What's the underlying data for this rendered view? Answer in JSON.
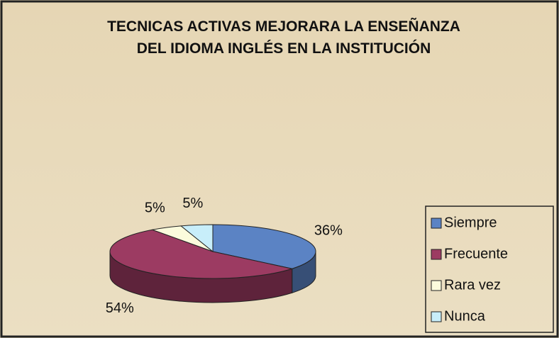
{
  "chart_data": {
    "type": "pie3d",
    "title": "TECNICAS ACTIVAS MEJORARA LA ENSEÑANZA DEL IDIOMA INGLÉS EN LA INSTITUCIÓN",
    "categories": [
      "Siempre",
      "Frecuente",
      "Rara vez",
      "Nunca"
    ],
    "values": [
      36,
      54,
      5,
      5
    ],
    "value_labels": [
      "36%",
      "54%",
      "5%",
      "5%"
    ],
    "colors": [
      "#5b83c4",
      "#9c3b62",
      "#fbfbdc",
      "#c8eefa"
    ],
    "legend": "right"
  }
}
